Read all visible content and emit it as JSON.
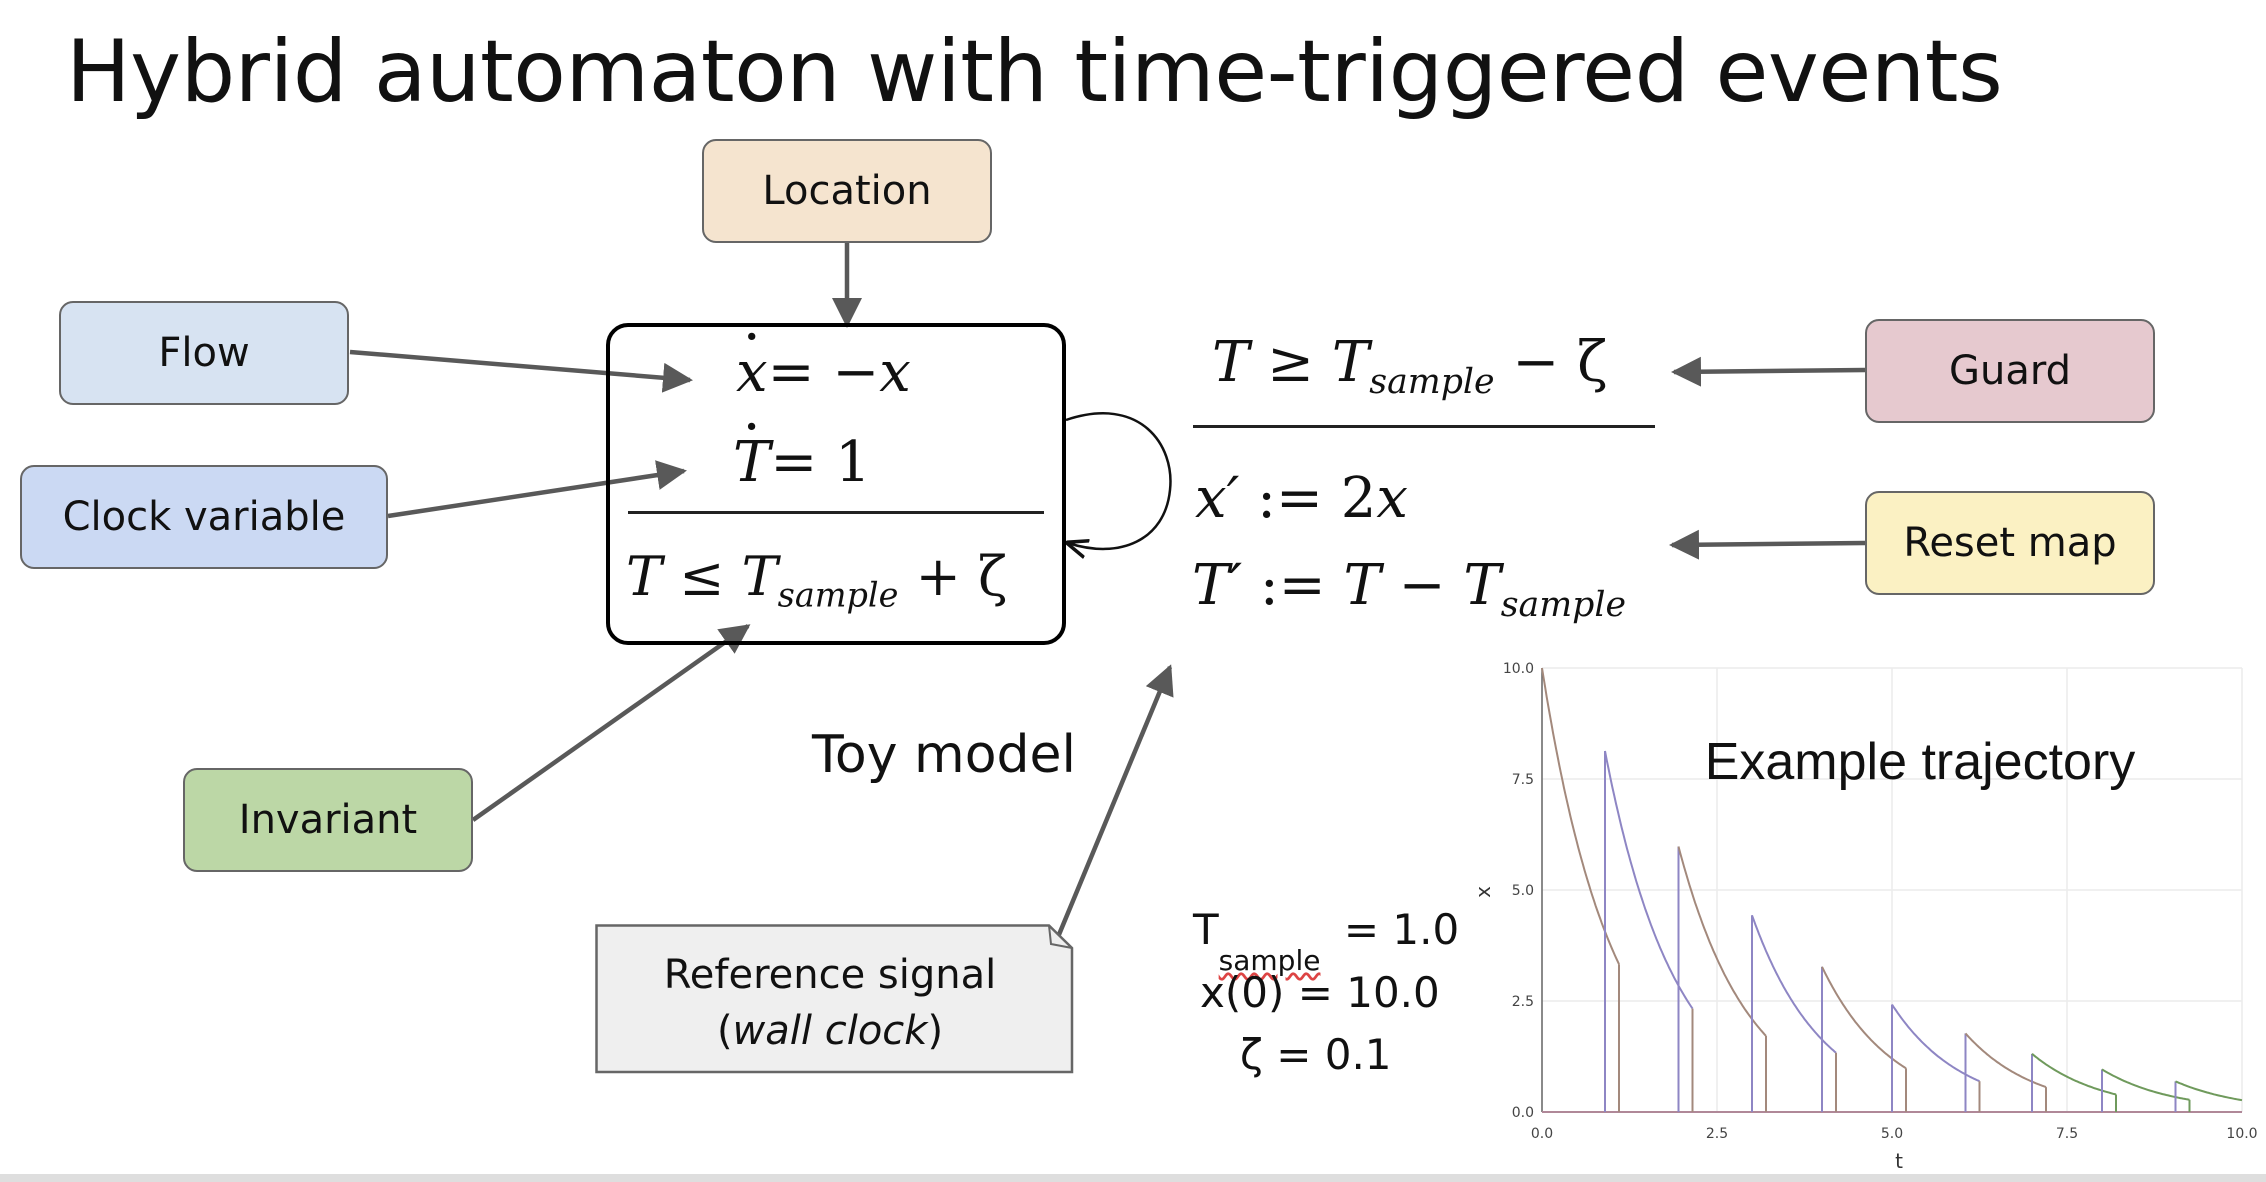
{
  "slide": {
    "title": "Hybrid automaton with time-triggered events"
  },
  "labels": {
    "location": "Location",
    "flow": "Flow",
    "clock_variable": "Clock variable",
    "invariant": "Invariant",
    "guard": "Guard",
    "reset_map": "Reset map",
    "reference_signal_line1": "Reference signal",
    "reference_signal_line2_open": "(",
    "reference_signal_line2_italic": "wall clock",
    "reference_signal_line2_close": ")",
    "toy_model": "Toy model"
  },
  "colors": {
    "location": "#f5e4cf",
    "flow": "#d7e3f2",
    "clock_variable": "#cbd9f3",
    "invariant": "#bcd7a6",
    "guard": "#e6c9cf",
    "reset_map": "#fbf1c3",
    "reference_signal": "#efefef",
    "arrow": "#595959"
  },
  "automaton": {
    "flow_x_lhs": "x",
    "flow_x_eq": "= −",
    "flow_x_rhs": "x",
    "flow_T_lhs": "T",
    "flow_T_rhs": "= 1",
    "inv_T": "T",
    "inv_le": " ≤ ",
    "inv_Ts": "T",
    "inv_sub": "sample",
    "inv_plus": " + ζ"
  },
  "transition": {
    "guard_T": "T",
    "guard_ge": " ≥ ",
    "guard_Ts": "T",
    "guard_sub": "sample",
    "guard_minus": " − ζ",
    "reset_x_lhs": "x′",
    "reset_x_assign": " := 2",
    "reset_x_rhs": "x",
    "reset_T_lhs": "T′",
    "reset_T_assign": " := ",
    "reset_T_T": "T",
    "reset_T_minus": " − ",
    "reset_T_Ts": "T",
    "reset_T_sub": "sample"
  },
  "params": {
    "t_sample_T": "T",
    "t_sample_sub": "sample",
    "t_sample_val": "= 1.0",
    "x0": "x(0) = 10.0",
    "zeta": "ζ = 0.1"
  },
  "chart_data": {
    "type": "line",
    "title": "Example trajectory",
    "xlabel": "t",
    "ylabel": "x",
    "xlim": [
      0,
      10
    ],
    "ylim": [
      0,
      10
    ],
    "xticks": [
      "0.0",
      "2.5",
      "5.0",
      "7.5",
      "10.0"
    ],
    "yticks": [
      "0.0",
      "2.5",
      "5.0",
      "7.5",
      "10.0"
    ],
    "grid": true,
    "series_colors": [
      "#8e86c4",
      "#a3897c",
      "#6f9a5c"
    ],
    "segments": [
      {
        "t0": 0.0,
        "t1": 0.9,
        "x0": 10.0,
        "jump_to": 8.13
      },
      {
        "t0": 0.9,
        "t1": 1.95,
        "x0": 8.13,
        "jump_to": 5.98
      },
      {
        "t0": 1.95,
        "t1": 3.0,
        "x0": 5.98,
        "jump_to": 4.43
      },
      {
        "t0": 3.0,
        "t1": 4.0,
        "x0": 4.43,
        "jump_to": 3.27
      },
      {
        "t0": 4.0,
        "t1": 5.0,
        "x0": 3.27,
        "jump_to": 2.42
      },
      {
        "t0": 5.0,
        "t1": 6.05,
        "x0": 2.42,
        "jump_to": 1.77
      },
      {
        "t0": 6.05,
        "t1": 7.0,
        "x0": 1.77,
        "jump_to": 1.31
      },
      {
        "t0": 7.0,
        "t1": 8.0,
        "x0": 1.31,
        "jump_to": 0.96
      },
      {
        "t0": 8.0,
        "t1": 9.05,
        "x0": 0.96,
        "jump_to": 0.69
      },
      {
        "t0": 9.05,
        "t1": 10.0,
        "x0": 0.69,
        "jump_to": null
      }
    ]
  }
}
